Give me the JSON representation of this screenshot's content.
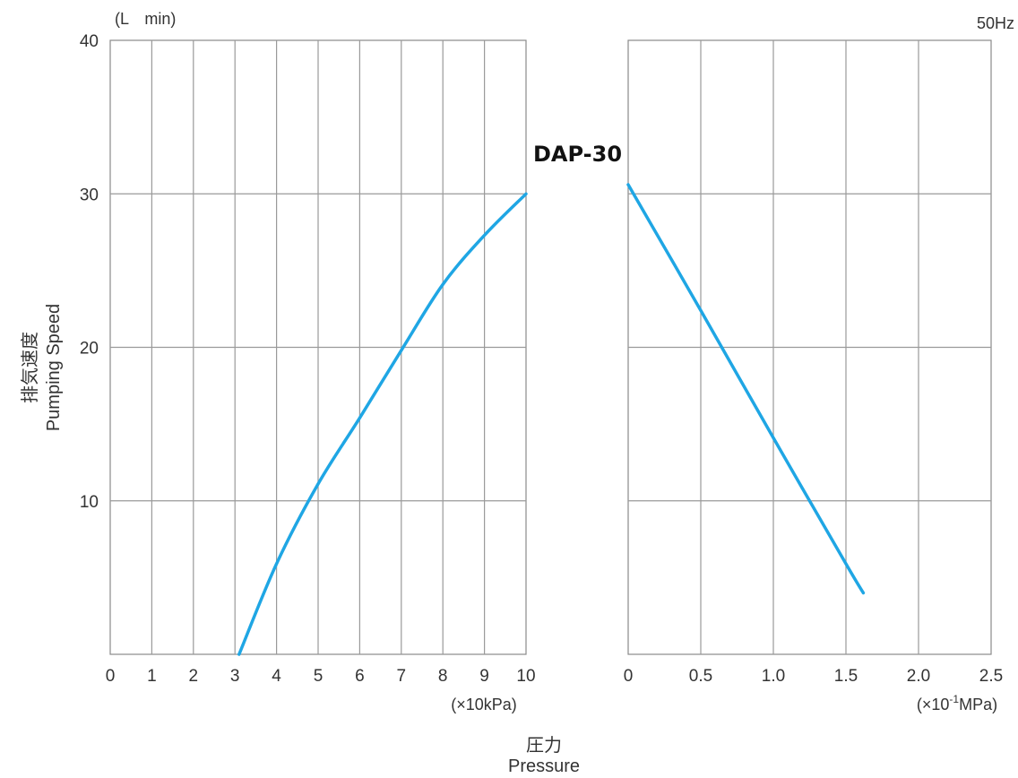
{
  "chart_data": {
    "type": "line",
    "frequency_label": "50Hz",
    "model_label": "DAP-30",
    "y_unit": "(L　min)",
    "y_label_ja": "排気速度",
    "y_label_en": "Pumping Speed",
    "x_label_ja": "圧力",
    "x_label_en": "Pressure",
    "series_color": "#1fa6e4",
    "y_ticks": [
      "10",
      "20",
      "30",
      "40"
    ],
    "ylim": [
      0,
      40
    ],
    "panels": [
      {
        "id": "vacuum",
        "unit": "(×10kPa)",
        "xlim": [
          0,
          10
        ],
        "x_ticks": [
          "0",
          "1",
          "2",
          "3",
          "4",
          "5",
          "6",
          "7",
          "8",
          "9",
          "10"
        ],
        "x": [
          3.1,
          4,
          5,
          6,
          7,
          8,
          9,
          10
        ],
        "y": [
          0,
          5.9,
          11.1,
          15.4,
          19.8,
          24.1,
          27.3,
          30
        ]
      },
      {
        "id": "pressure",
        "unit": "(×10-1MPa)",
        "unit_main": "(×10",
        "unit_sup": "-1",
        "unit_tail": "MPa)",
        "xlim": [
          0,
          2.5
        ],
        "x_ticks": [
          "0",
          "0.5",
          "1.0",
          "1.5",
          "2.0",
          "2.5"
        ],
        "x": [
          0,
          0.5,
          1.0,
          1.5,
          1.62
        ],
        "y": [
          30.6,
          22.4,
          14.1,
          5.9,
          4.0
        ]
      }
    ]
  }
}
